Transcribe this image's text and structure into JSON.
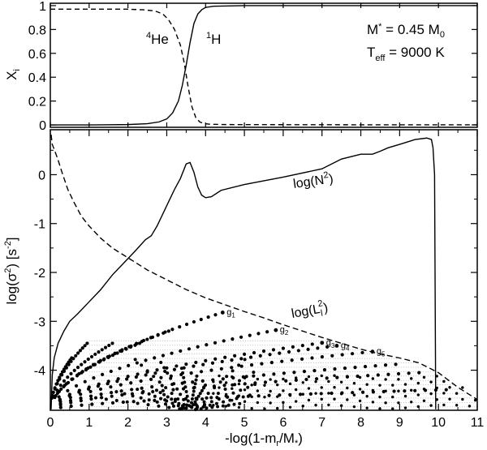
{
  "chart_data": [
    {
      "type": "line",
      "panel": "top",
      "xlim": [
        0,
        11
      ],
      "ylim": [
        -0.02,
        1.02
      ],
      "yticks": [
        0,
        0.2,
        0.4,
        0.6,
        0.8,
        1
      ],
      "ytick_labels": [
        "0",
        "0.2",
        "0.4",
        "0.6",
        "0.8",
        "1"
      ],
      "ylabel_main": "X",
      "ylabel_sub": "i",
      "annotations": {
        "mass": {
          "main": "M",
          "sub": "*",
          "rest": " = 0.45 M",
          "rest_sub": "0"
        },
        "teff": {
          "main": "T",
          "sub": "eff",
          "rest": " = 9000 K"
        }
      },
      "series": [
        {
          "name": "He",
          "name_sup": "4",
          "style": "dashed",
          "x": [
            0,
            0.5,
            1.0,
            1.5,
            2.0,
            2.4,
            2.7,
            2.9,
            3.05,
            3.2,
            3.35,
            3.45,
            3.55,
            3.65,
            3.75,
            3.85,
            3.95,
            4.1,
            4.5,
            6,
            8,
            11
          ],
          "y": [
            0.97,
            0.97,
            0.97,
            0.97,
            0.97,
            0.965,
            0.955,
            0.93,
            0.88,
            0.8,
            0.67,
            0.52,
            0.32,
            0.15,
            0.06,
            0.025,
            0.012,
            0.006,
            0.003,
            0.002,
            0.001,
            0.001
          ]
        },
        {
          "name": "H",
          "name_sup": "1",
          "style": "solid",
          "x": [
            0,
            1,
            2,
            2.5,
            2.8,
            3.0,
            3.15,
            3.3,
            3.4,
            3.5,
            3.6,
            3.7,
            3.8,
            3.9,
            4.0,
            4.2,
            5,
            7,
            11
          ],
          "y": [
            0,
            0,
            0.003,
            0.01,
            0.025,
            0.05,
            0.1,
            0.2,
            0.33,
            0.5,
            0.69,
            0.85,
            0.93,
            0.965,
            0.985,
            0.995,
            1.0,
            1.0,
            1.0
          ]
        }
      ]
    },
    {
      "type": "line",
      "panel": "bottom",
      "xlim": [
        0,
        11
      ],
      "ylim": [
        -4.82,
        0.92
      ],
      "xticks": [
        0,
        1,
        2,
        3,
        4,
        5,
        6,
        7,
        8,
        9,
        10,
        11
      ],
      "yticks": [
        -4,
        -3,
        -2,
        -1,
        0
      ],
      "ylabel": {
        "pre": "log(σ",
        "sup1": "2",
        "mid": ") [s",
        "sup2": "-2",
        "post": "]"
      },
      "xlabel": {
        "pre": "-log(1-m",
        "sub1": "r",
        "mid": "/M",
        "sub2": "*",
        "post": ")"
      },
      "series": [
        {
          "name": "log(N²)",
          "label": {
            "pre": "log(N",
            "sup": "2",
            "post": ")"
          },
          "style": "solid",
          "x": [
            0.02,
            0.05,
            0.1,
            0.2,
            0.35,
            0.5,
            0.7,
            1.0,
            1.3,
            1.6,
            1.9,
            2.2,
            2.45,
            2.6,
            2.75,
            2.9,
            3.05,
            3.2,
            3.35,
            3.5,
            3.6,
            3.7,
            3.8,
            3.9,
            4.0,
            4.15,
            4.4,
            5,
            6,
            7,
            7.5,
            8,
            8.3,
            8.5,
            8.7,
            9,
            9.4,
            9.7,
            9.82,
            9.86,
            9.9,
            9.93
          ],
          "y": [
            -4.8,
            -4.1,
            -3.75,
            -3.45,
            -3.2,
            -3.0,
            -2.85,
            -2.6,
            -2.35,
            -2.05,
            -1.8,
            -1.55,
            -1.33,
            -1.25,
            -1.05,
            -0.8,
            -0.55,
            -0.3,
            -0.08,
            0.22,
            0.25,
            0.05,
            -0.25,
            -0.42,
            -0.47,
            -0.45,
            -0.32,
            -0.2,
            -0.05,
            0.12,
            0.32,
            0.42,
            0.42,
            0.48,
            0.55,
            0.62,
            0.72,
            0.75,
            0.72,
            0.55,
            0.0,
            -4.8
          ]
        },
        {
          "name": "log(L_l²)",
          "label": {
            "pre": "log(L",
            "sub": "l",
            "sup": "2",
            "post": ")"
          },
          "style": "dashed",
          "x": [
            0.02,
            0.05,
            0.1,
            0.2,
            0.3,
            0.45,
            0.6,
            0.8,
            1.0,
            1.3,
            1.6,
            2.0,
            2.5,
            3.0,
            3.5,
            4.0,
            4.5,
            5.0,
            5.5,
            6.0,
            6.5,
            7.0,
            7.5,
            8.0,
            8.5,
            9.0,
            9.5,
            10.0,
            10.5,
            11.0
          ],
          "y": [
            0.82,
            0.62,
            0.52,
            0.3,
            0.05,
            -0.3,
            -0.55,
            -0.85,
            -1.05,
            -1.3,
            -1.5,
            -1.7,
            -1.95,
            -2.15,
            -2.35,
            -2.52,
            -2.66,
            -2.8,
            -2.93,
            -3.07,
            -3.2,
            -3.33,
            -3.45,
            -3.57,
            -3.67,
            -3.75,
            -3.85,
            -4.05,
            -4.35,
            -4.6
          ]
        }
      ],
      "mode_labels": [
        {
          "text": "g",
          "sub": "1",
          "x": 4.44,
          "y": -2.82
        },
        {
          "text": "g",
          "sub": "2",
          "x": 5.81,
          "y": -3.18
        },
        {
          "text": "g",
          "sub": "3",
          "x": 7.0,
          "y": -3.44
        },
        {
          "text": "g",
          "sub": "4",
          "x": 7.38,
          "y": -3.5
        },
        {
          "text": "g",
          "sub": "5",
          "x": 8.3,
          "y": -3.62
        }
      ]
    }
  ]
}
